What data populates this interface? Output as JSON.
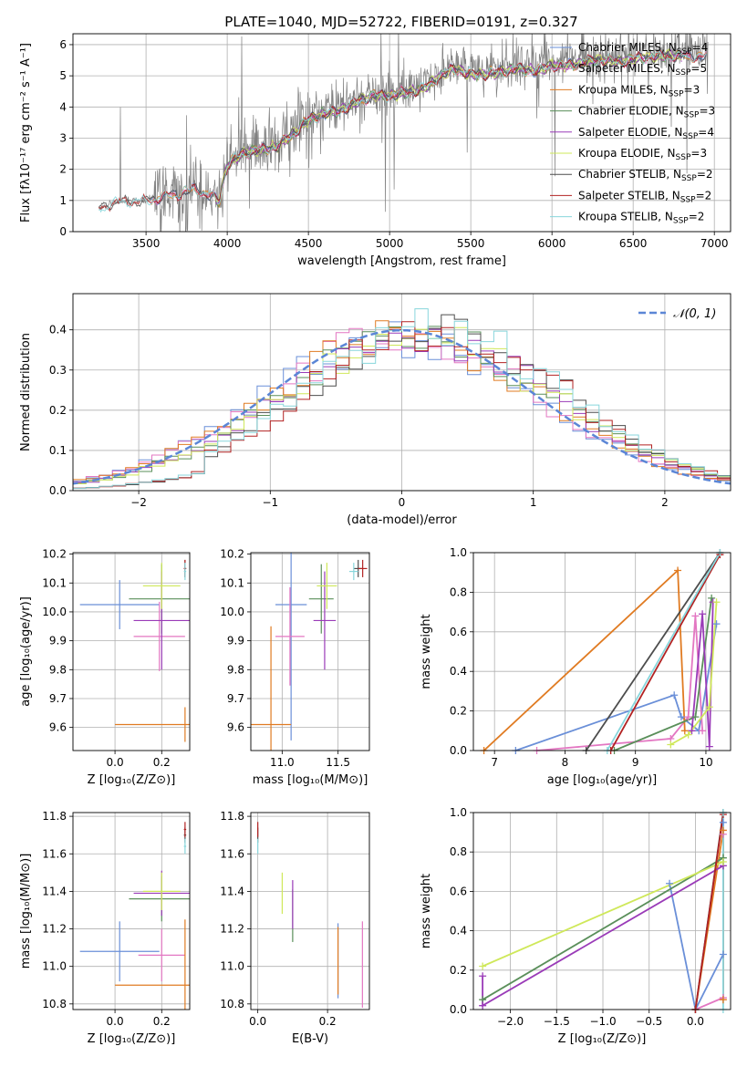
{
  "figure": {
    "title": "PLATE=1040, MJD=52722, FIBERID=0191, z=0.327"
  },
  "colors": {
    "Chabrier MILES": "#6a8fd8",
    "Salpeter MILES": "#e377c2",
    "Kroupa MILES": "#e07b22",
    "Chabrier ELODIE": "#5a8f5a",
    "Salpeter ELODIE": "#9a3bb8",
    "Kroupa ELODIE": "#cfe85a",
    "Chabrier STELIB": "#4d4d4d",
    "Salpeter STELIB": "#b22222",
    "Kroupa STELIB": "#88d6dc",
    "data": "#808080",
    "gaussian": "#5b86d6"
  },
  "chart_data": [
    {
      "id": "spectrum",
      "type": "line",
      "xlabel": "wavelength [Angstrom, rest frame]",
      "ylabel": "Flux [fλ10⁻¹⁷ erg cm⁻² s⁻¹ A⁻¹]",
      "xlim": [
        3050,
        7100
      ],
      "ylim": [
        0,
        6.35
      ],
      "xticks": [
        "3500",
        "4000",
        "4500",
        "5000",
        "5500",
        "6000",
        "6500",
        "7000"
      ],
      "xtick_values": [
        3500,
        4000,
        4500,
        5000,
        5500,
        6000,
        6500,
        7000
      ],
      "yticks": [
        "0",
        "1",
        "2",
        "3",
        "4",
        "5",
        "6"
      ],
      "ytick_values": [
        0,
        1,
        2,
        3,
        4,
        5,
        6
      ],
      "legend_position": "top-right",
      "legend": [
        {
          "label": "Chabrier MILES, N",
          "sub": "SSP",
          "suffix": "=4",
          "model": "Chabrier MILES"
        },
        {
          "label": "Salpeter MILES, N",
          "sub": "SSP",
          "suffix": "=5",
          "model": "Salpeter MILES"
        },
        {
          "label": "Kroupa MILES, N",
          "sub": "SSP",
          "suffix": "=3",
          "model": "Kroupa MILES"
        },
        {
          "label": "Chabrier ELODIE, N",
          "sub": "SSP",
          "suffix": "=3",
          "model": "Chabrier ELODIE"
        },
        {
          "label": "Salpeter ELODIE, N",
          "sub": "SSP",
          "suffix": "=4",
          "model": "Salpeter ELODIE"
        },
        {
          "label": "Kroupa ELODIE, N",
          "sub": "SSP",
          "suffix": "=3",
          "model": "Kroupa ELODIE"
        },
        {
          "label": "Chabrier STELIB, N",
          "sub": "SSP",
          "suffix": "=2",
          "model": "Chabrier STELIB"
        },
        {
          "label": "Salpeter STELIB, N",
          "sub": "SSP",
          "suffix": "=2",
          "model": "Salpeter STELIB"
        },
        {
          "label": "Kroupa STELIB, N",
          "sub": "SSP",
          "suffix": "=2",
          "model": "Kroupa STELIB"
        }
      ],
      "continuum": [
        [
          3210,
          0.75
        ],
        [
          3300,
          0.95
        ],
        [
          3400,
          1.0
        ],
        [
          3500,
          1.0
        ],
        [
          3600,
          1.15
        ],
        [
          3700,
          1.25
        ],
        [
          3800,
          1.4
        ],
        [
          3900,
          1.2
        ],
        [
          3950,
          1.0
        ],
        [
          4000,
          2.2
        ],
        [
          4100,
          2.6
        ],
        [
          4200,
          2.7
        ],
        [
          4300,
          2.8
        ],
        [
          4400,
          3.2
        ],
        [
          4500,
          3.7
        ],
        [
          4600,
          3.9
        ],
        [
          4700,
          4.0
        ],
        [
          4800,
          4.3
        ],
        [
          4900,
          4.5
        ],
        [
          5000,
          4.5
        ],
        [
          5100,
          4.6
        ],
        [
          5200,
          4.7
        ],
        [
          5300,
          5.1
        ],
        [
          5400,
          5.4
        ],
        [
          5500,
          5.2
        ],
        [
          5600,
          5.2
        ],
        [
          5700,
          5.3
        ],
        [
          5800,
          5.4
        ],
        [
          5900,
          5.3
        ],
        [
          6000,
          5.5
        ],
        [
          6100,
          5.5
        ],
        [
          6200,
          5.6
        ],
        [
          6300,
          5.7
        ],
        [
          6400,
          5.6
        ],
        [
          6500,
          5.7
        ],
        [
          6600,
          5.8
        ],
        [
          6700,
          5.8
        ],
        [
          6800,
          5.8
        ],
        [
          6900,
          5.8
        ],
        [
          6960,
          5.8
        ]
      ],
      "models_start": {
        "MILES": 3530,
        "ELODIE": 3930,
        "STELIB": 3210
      },
      "models_end": {
        "MILES": 6950,
        "ELODIE": 6800,
        "STELIB": 6950
      }
    },
    {
      "id": "residual_hist",
      "type": "histogram",
      "xlabel": "(data-model)/error",
      "ylabel": "Normed distribution",
      "xlim": [
        -2.5,
        2.5
      ],
      "ylim": [
        0,
        0.49
      ],
      "xticks": [
        "−2",
        "−1",
        "0",
        "1",
        "2"
      ],
      "xtick_values": [
        -2,
        -1,
        0,
        1,
        2
      ],
      "yticks": [
        "0.0",
        "0.1",
        "0.2",
        "0.3",
        "0.4"
      ],
      "ytick_values": [
        0,
        0.1,
        0.2,
        0.3,
        0.4
      ],
      "bin_width": 0.1,
      "legend_position": "top-right",
      "gaussian_label": "𝒩(0, 1)",
      "gaussian_mean": 0,
      "gaussian_sigma": 1
    },
    {
      "id": "age_vs_Z",
      "type": "scatter",
      "xlabel": "Z [log₁₀(Z/Z⊙)]",
      "ylabel": "age  [log₁₀(age/yr)]",
      "xlim": [
        -0.18,
        0.32
      ],
      "ylim": [
        9.52,
        10.205
      ],
      "xticks": [
        "0.0",
        "0.2"
      ],
      "xtick_values": [
        0,
        0.2
      ],
      "yticks": [
        "9.6",
        "9.7",
        "9.8",
        "9.9",
        "10.0",
        "10.1",
        "10.2"
      ],
      "ytick_values": [
        9.6,
        9.7,
        9.8,
        9.9,
        10.0,
        10.1,
        10.2
      ],
      "points": [
        {
          "model": "Chabrier MILES",
          "x": 0.02,
          "y": 10.025,
          "xerr": 0.17,
          "yerr": 0.085
        },
        {
          "model": "Salpeter MILES",
          "x": 0.19,
          "y": 9.915,
          "xerr": 0.11,
          "yerr": 0.12
        },
        {
          "model": "Kroupa MILES",
          "x": 0.3,
          "y": 9.61,
          "xerr": 0.3,
          "yerr": 0.06
        },
        {
          "model": "Chabrier ELODIE",
          "x": 0.2,
          "y": 10.045,
          "xerr": 0.14,
          "yerr": 0.12
        },
        {
          "model": "Salpeter ELODIE",
          "x": 0.2,
          "y": 9.97,
          "xerr": 0.12,
          "yerr": 0.17
        },
        {
          "model": "Kroupa ELODIE",
          "x": 0.2,
          "y": 10.09,
          "xerr": 0.08,
          "yerr": 0.08
        },
        {
          "model": "Chabrier STELIB",
          "x": 0.3,
          "y": 10.15,
          "xerr": 0.005,
          "yerr": 0.03
        },
        {
          "model": "Salpeter STELIB",
          "x": 0.3,
          "y": 10.15,
          "xerr": 0.005,
          "yerr": 0.03
        },
        {
          "model": "Kroupa STELIB",
          "x": 0.3,
          "y": 10.14,
          "xerr": 0.005,
          "yerr": 0.03
        }
      ]
    },
    {
      "id": "age_vs_mass",
      "type": "scatter",
      "xlabel": "mass [log₁₀(M/M⊙)]",
      "ylabel": "",
      "xlim": [
        10.72,
        11.78
      ],
      "ylim": [
        9.52,
        10.205
      ],
      "xticks": [
        "11.0",
        "11.5"
      ],
      "xtick_values": [
        11.0,
        11.5
      ],
      "yticks": [
        "9.6",
        "9.7",
        "9.8",
        "9.9",
        "10.0",
        "10.1",
        "10.2"
      ],
      "ytick_values": [
        9.6,
        9.7,
        9.8,
        9.9,
        10.0,
        10.1,
        10.2
      ],
      "points": [
        {
          "model": "Chabrier MILES",
          "x": 11.08,
          "y": 10.025,
          "xerr": 0.14,
          "yerr": 0.47
        },
        {
          "model": "Salpeter MILES",
          "x": 11.07,
          "y": 9.915,
          "xerr": 0.13,
          "yerr": 0.17
        },
        {
          "model": "Kroupa MILES",
          "x": 10.9,
          "y": 9.61,
          "xerr": 0.18,
          "yerr": 0.34
        },
        {
          "model": "Chabrier ELODIE",
          "x": 11.35,
          "y": 10.045,
          "xerr": 0.11,
          "yerr": 0.12
        },
        {
          "model": "Salpeter ELODIE",
          "x": 11.38,
          "y": 9.97,
          "xerr": 0.1,
          "yerr": 0.17
        },
        {
          "model": "Kroupa ELODIE",
          "x": 11.4,
          "y": 10.09,
          "xerr": 0.09,
          "yerr": 0.08
        },
        {
          "model": "Chabrier STELIB",
          "x": 11.68,
          "y": 10.15,
          "xerr": 0.04,
          "yerr": 0.03
        },
        {
          "model": "Salpeter STELIB",
          "x": 11.72,
          "y": 10.15,
          "xerr": 0.04,
          "yerr": 0.03
        },
        {
          "model": "Kroupa STELIB",
          "x": 11.64,
          "y": 10.14,
          "xerr": 0.04,
          "yerr": 0.03
        }
      ]
    },
    {
      "id": "massweight_vs_age",
      "type": "line",
      "xlabel": "age  [log₁₀(age/yr)]",
      "ylabel": "mass weight",
      "xlim": [
        6.7,
        10.35
      ],
      "ylim": [
        0,
        1
      ],
      "xticks": [
        "7",
        "8",
        "9",
        "10"
      ],
      "xtick_values": [
        7,
        8,
        9,
        10
      ],
      "yticks": [
        "0.0",
        "0.2",
        "0.4",
        "0.6",
        "0.8",
        "1.0"
      ],
      "ytick_values": [
        0,
        0.2,
        0.4,
        0.6,
        0.8,
        1.0
      ],
      "series": [
        {
          "model": "Chabrier MILES",
          "x": [
            7.3,
            9.55,
            9.65,
            9.9,
            10.15
          ],
          "y": [
            0.0,
            0.28,
            0.17,
            0.1,
            0.64
          ]
        },
        {
          "model": "Salpeter MILES",
          "x": [
            7.6,
            9.5,
            9.75,
            9.85,
            9.95
          ],
          "y": [
            0.0,
            0.06,
            0.17,
            0.68,
            0.1
          ]
        },
        {
          "model": "Kroupa MILES",
          "x": [
            6.85,
            9.6,
            9.7
          ],
          "y": [
            0.0,
            0.91,
            0.1
          ]
        },
        {
          "model": "Chabrier ELODIE",
          "x": [
            8.7,
            9.85,
            10.08
          ],
          "y": [
            0.0,
            0.17,
            0.77
          ]
        },
        {
          "model": "Salpeter ELODIE",
          "x": [
            9.8,
            9.95,
            10.05,
            10.1
          ],
          "y": [
            0.1,
            0.69,
            0.02,
            0.75
          ]
        },
        {
          "model": "Kroupa ELODIE",
          "x": [
            9.5,
            9.75,
            10.05,
            10.15
          ],
          "y": [
            0.03,
            0.08,
            0.22,
            0.75
          ]
        },
        {
          "model": "Chabrier STELIB",
          "x": [
            8.3,
            10.2
          ],
          "y": [
            0.0,
            1.0
          ]
        },
        {
          "model": "Salpeter STELIB",
          "x": [
            8.65,
            10.2
          ],
          "y": [
            0.0,
            0.99
          ]
        },
        {
          "model": "Kroupa STELIB",
          "x": [
            8.6,
            10.2
          ],
          "y": [
            0.0,
            1.0
          ]
        }
      ]
    },
    {
      "id": "mass_vs_Z",
      "type": "scatter",
      "xlabel": "Z [log₁₀(Z/Z⊙)]",
      "ylabel": "mass [log₁₀(M/M⊙)]",
      "xlim": [
        -0.18,
        0.32
      ],
      "ylim": [
        10.77,
        11.82
      ],
      "xticks": [
        "0.0",
        "0.2"
      ],
      "xtick_values": [
        0,
        0.2
      ],
      "yticks": [
        "10.8",
        "11.0",
        "11.2",
        "11.4",
        "11.6",
        "11.8"
      ],
      "ytick_values": [
        10.8,
        11.0,
        11.2,
        11.4,
        11.6,
        11.8
      ],
      "points": [
        {
          "model": "Chabrier MILES",
          "x": 0.02,
          "y": 11.08,
          "xerr": 0.17,
          "yerr": 0.16
        },
        {
          "model": "Salpeter MILES",
          "x": 0.2,
          "y": 11.06,
          "xerr": 0.1,
          "yerr": 0.14
        },
        {
          "model": "Kroupa MILES",
          "x": 0.3,
          "y": 10.9,
          "xerr": 0.3,
          "yerr": 0.35
        },
        {
          "model": "Chabrier ELODIE",
          "x": 0.2,
          "y": 11.36,
          "xerr": 0.14,
          "yerr": 0.12
        },
        {
          "model": "Salpeter ELODIE",
          "x": 0.2,
          "y": 11.39,
          "xerr": 0.12,
          "yerr": 0.12
        },
        {
          "model": "Kroupa ELODIE",
          "x": 0.2,
          "y": 11.4,
          "xerr": 0.08,
          "yerr": 0.1
        },
        {
          "model": "Chabrier STELIB",
          "x": 0.3,
          "y": 11.7,
          "xerr": 0.005,
          "yerr": 0.04
        },
        {
          "model": "Salpeter STELIB",
          "x": 0.3,
          "y": 11.73,
          "xerr": 0.005,
          "yerr": 0.04
        },
        {
          "model": "Kroupa STELIB",
          "x": 0.3,
          "y": 11.64,
          "xerr": 0.005,
          "yerr": 0.04
        }
      ]
    },
    {
      "id": "mass_vs_ebv",
      "type": "scatter",
      "xlabel": "E(B-V)",
      "ylabel": "",
      "xlim": [
        -0.02,
        0.32
      ],
      "ylim": [
        10.77,
        11.82
      ],
      "xticks": [
        "0.0",
        "0.2"
      ],
      "xtick_values": [
        0,
        0.2
      ],
      "yticks": [
        "10.8",
        "11.0",
        "11.2",
        "11.4",
        "11.6",
        "11.8"
      ],
      "ytick_values": [
        10.8,
        11.0,
        11.2,
        11.4,
        11.6,
        11.8
      ],
      "points": [
        {
          "model": "Chabrier MILES",
          "x": 0.23,
          "y": 11.03,
          "xerr": 0.0,
          "yerr": 0.2
        },
        {
          "model": "Salpeter MILES",
          "x": 0.3,
          "y": 11.01,
          "xerr": 0.0,
          "yerr": 0.23
        },
        {
          "model": "Kroupa MILES",
          "x": 0.23,
          "y": 11.03,
          "xerr": 0.0,
          "yerr": 0.18
        },
        {
          "model": "Chabrier ELODIE",
          "x": 0.1,
          "y": 11.27,
          "xerr": 0.0,
          "yerr": 0.14
        },
        {
          "model": "Salpeter ELODIE",
          "x": 0.1,
          "y": 11.33,
          "xerr": 0.0,
          "yerr": 0.13
        },
        {
          "model": "Kroupa ELODIE",
          "x": 0.07,
          "y": 11.39,
          "xerr": 0.0,
          "yerr": 0.11
        },
        {
          "model": "Chabrier STELIB",
          "x": 0.0,
          "y": 11.7,
          "xerr": 0.0,
          "yerr": 0.04
        },
        {
          "model": "Salpeter STELIB",
          "x": 0.0,
          "y": 11.73,
          "xerr": 0.0,
          "yerr": 0.04
        },
        {
          "model": "Kroupa STELIB",
          "x": 0.0,
          "y": 11.64,
          "xerr": 0.0,
          "yerr": 0.04
        }
      ]
    },
    {
      "id": "massweight_vs_Z",
      "type": "line",
      "xlabel": "Z [log₁₀(Z/Z⊙)]",
      "ylabel": "mass weight",
      "xlim": [
        -2.4,
        0.38
      ],
      "ylim": [
        0,
        1
      ],
      "xticks": [
        "−2.0",
        "−1.5",
        "−1.0",
        "−0.5",
        "0.0"
      ],
      "xtick_values": [
        -2.0,
        -1.5,
        -1.0,
        -0.5,
        0.0
      ],
      "yticks": [
        "0.0",
        "0.2",
        "0.4",
        "0.6",
        "0.8",
        "1.0"
      ],
      "ytick_values": [
        0,
        0.2,
        0.4,
        0.6,
        0.8,
        1.0
      ],
      "series": [
        {
          "model": "Chabrier MILES",
          "x": [
            -0.28,
            0.0,
            0.3,
            0.3
          ],
          "y": [
            0.64,
            0.0,
            0.28,
            0.95
          ]
        },
        {
          "model": "Salpeter MILES",
          "x": [
            0.0,
            0.3,
            0.3
          ],
          "y": [
            0.0,
            0.06,
            0.89
          ]
        },
        {
          "model": "Kroupa MILES",
          "x": [
            0.0,
            0.3,
            0.3
          ],
          "y": [
            0.0,
            0.91,
            0.05
          ]
        },
        {
          "model": "Chabrier ELODIE",
          "x": [
            -2.3,
            0.3
          ],
          "y": [
            0.05,
            0.77
          ]
        },
        {
          "model": "Salpeter ELODIE",
          "x": [
            -2.3,
            -2.3,
            0.3
          ],
          "y": [
            0.17,
            0.02,
            0.73
          ]
        },
        {
          "model": "Kroupa ELODIE",
          "x": [
            -2.3,
            0.3
          ],
          "y": [
            0.22,
            0.75
          ]
        },
        {
          "model": "Chabrier STELIB",
          "x": [
            0.0,
            0.3
          ],
          "y": [
            0.0,
            1.0
          ]
        },
        {
          "model": "Salpeter STELIB",
          "x": [
            0.0,
            0.3
          ],
          "y": [
            0.0,
            0.99
          ]
        },
        {
          "model": "Kroupa STELIB",
          "x": [
            0.3,
            0.3
          ],
          "y": [
            0.0,
            1.0
          ]
        }
      ]
    }
  ]
}
